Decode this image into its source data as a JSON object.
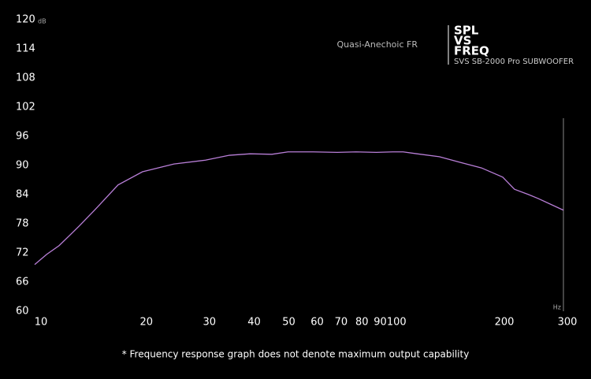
{
  "chart_data": {
    "type": "line",
    "log_x": true,
    "title_lines": [
      "SPL",
      "VS",
      "FREQ"
    ],
    "subtitle": "SVS SB-2000 Pro SUBWOOFER",
    "series_label": "Quasi-Anechoic FR",
    "y_unit": "dB",
    "x_unit": "Hz",
    "footnote": "* Frequency response graph does not denote maximum output capability",
    "x": [
      10,
      10.8,
      11.7,
      12.6,
      13.3,
      14.7,
      17.1,
      20,
      24.5,
      30,
      35,
      40,
      46,
      51,
      60,
      70,
      79,
      90,
      100,
      107,
      117,
      135,
      155,
      177,
      203,
      219,
      240,
      255,
      300
    ],
    "series": [
      {
        "color": "#b97fd8",
        "values": [
          69.6,
          71.7,
          73.5,
          75.8,
          77.5,
          80.8,
          86.0,
          88.7,
          90.3,
          91.1,
          92.1,
          92.4,
          92.3,
          92.8,
          92.8,
          92.7,
          92.8,
          92.7,
          92.8,
          92.8,
          92.4,
          91.8,
          90.6,
          89.5,
          87.6,
          85.1,
          84,
          83.2,
          80.8
        ]
      }
    ],
    "xlim": [
      10,
      300
    ],
    "xticks": [
      10,
      20,
      30,
      40,
      50,
      60,
      70,
      80,
      90,
      100,
      200,
      300
    ],
    "ylim": [
      60,
      120
    ],
    "yticks": [
      60,
      66,
      72,
      78,
      84,
      90,
      96,
      102,
      108,
      114,
      120
    ]
  }
}
